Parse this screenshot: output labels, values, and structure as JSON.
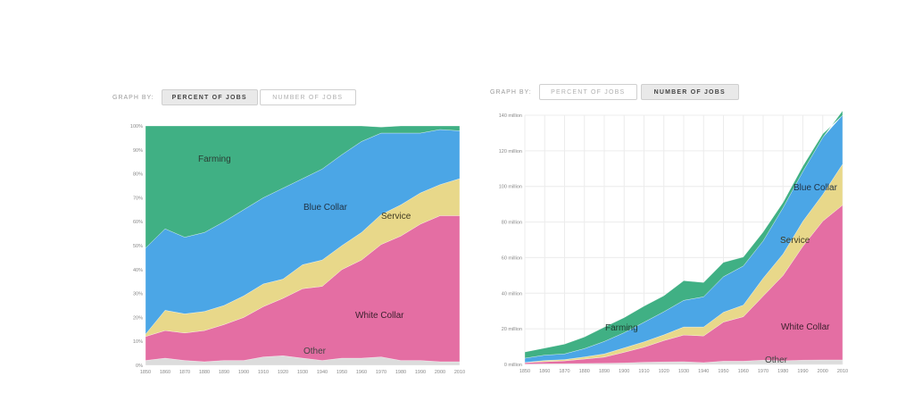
{
  "left_controls": {
    "graph_by": "GRAPH BY:",
    "percent_label": "PERCENT OF JOBS",
    "number_label": "NUMBER OF JOBS",
    "active": "percent"
  },
  "right_controls": {
    "graph_by": "GRAPH BY:",
    "percent_label": "PERCENT OF JOBS",
    "number_label": "NUMBER OF JOBS",
    "active": "number"
  },
  "colors": {
    "Other": "#dcdcdc",
    "White Collar": "#e46ea3",
    "Service": "#e8d88a",
    "Blue Collar": "#4ba6e6",
    "Farming": "#40b084"
  },
  "chart_data": [
    {
      "type": "area",
      "stacked": true,
      "x": [
        1850,
        1860,
        1870,
        1880,
        1890,
        1900,
        1910,
        1920,
        1930,
        1940,
        1950,
        1960,
        1970,
        1980,
        1990,
        2000,
        2010
      ],
      "x_ticks": [
        "1850",
        "1860",
        "1870",
        "1880",
        "1890",
        "1900",
        "1910",
        "1920",
        "1930",
        "1940",
        "1950",
        "1960",
        "1970",
        "1980",
        "1990",
        "2000",
        "2010"
      ],
      "y_ticks": [
        "0%",
        "10%",
        "20%",
        "30%",
        "40%",
        "50%",
        "60%",
        "70%",
        "80%",
        "90%",
        "100%"
      ],
      "ylim": [
        0,
        100
      ],
      "series": [
        {
          "name": "Other",
          "values": [
            2,
            3,
            2,
            1.5,
            2,
            2,
            3.5,
            4,
            3,
            2,
            3,
            3,
            3.5,
            2,
            2,
            1.5,
            1.5
          ]
        },
        {
          "name": "White Collar",
          "values": [
            10,
            11.5,
            11.5,
            13,
            15,
            18,
            21,
            24,
            29,
            31,
            37,
            41,
            47,
            52,
            57,
            61,
            61
          ]
        },
        {
          "name": "Service",
          "values": [
            1,
            8.5,
            8,
            8,
            8,
            9,
            9.5,
            8,
            10,
            11,
            10,
            11.5,
            12.5,
            13,
            13,
            13,
            15.5
          ]
        },
        {
          "name": "Blue Collar",
          "values": [
            36,
            34,
            32,
            33,
            35,
            36,
            36,
            38,
            36,
            38,
            38,
            38,
            34,
            30,
            25,
            23,
            20
          ]
        },
        {
          "name": "Farming",
          "values": [
            51,
            43,
            46.5,
            44.5,
            40,
            35,
            30,
            26,
            22,
            18,
            12,
            6.5,
            2.5,
            3,
            3,
            1.5,
            2
          ]
        }
      ]
    },
    {
      "type": "area",
      "stacked": true,
      "x": [
        1850,
        1860,
        1870,
        1880,
        1890,
        1900,
        1910,
        1920,
        1930,
        1940,
        1950,
        1960,
        1970,
        1980,
        1990,
        2000,
        2010
      ],
      "x_ticks": [
        "1850",
        "1860",
        "1870",
        "1880",
        "1890",
        "1900",
        "1910",
        "1920",
        "1930",
        "1940",
        "1950",
        "1960",
        "1970",
        "1980",
        "1990",
        "2000",
        "2010"
      ],
      "y_ticks": [
        "0 million",
        "20 million",
        "40 million",
        "60 million",
        "80 million",
        "100 million",
        "120 million",
        "140 million"
      ],
      "ylim": [
        0,
        140
      ],
      "series": [
        {
          "name": "Other",
          "values": [
            0.2,
            0.3,
            0.4,
            0.5,
            0.6,
            0.8,
            1.2,
            1.4,
            1.5,
            1.0,
            1.8,
            1.8,
            2.4,
            2.0,
            2.4,
            2.5,
            2.5
          ]
        },
        {
          "name": "White Collar",
          "values": [
            0.8,
            1.2,
            1.6,
            2.5,
            3.5,
            6.0,
            8.5,
            12,
            15,
            15,
            22,
            25,
            36,
            48,
            64,
            78,
            87
          ]
        },
        {
          "name": "Service",
          "values": [
            0.1,
            0.7,
            0.7,
            1.2,
            1.8,
            2.5,
            3.0,
            3.2,
            4.5,
            5.0,
            5.5,
            6.5,
            10,
            12,
            14,
            15,
            23
          ]
        },
        {
          "name": "Blue Collar",
          "values": [
            2.4,
            3.0,
            3.2,
            4.7,
            7.0,
            8.5,
            11,
            13,
            15,
            17,
            20,
            22,
            21,
            26,
            28,
            32,
            30
          ]
        },
        {
          "name": "Farming",
          "values": [
            3.5,
            4.0,
            5.5,
            6.5,
            8.0,
            8.5,
            9,
            9,
            11,
            8,
            8,
            5,
            5,
            3,
            3,
            2,
            1.5
          ]
        }
      ]
    }
  ]
}
